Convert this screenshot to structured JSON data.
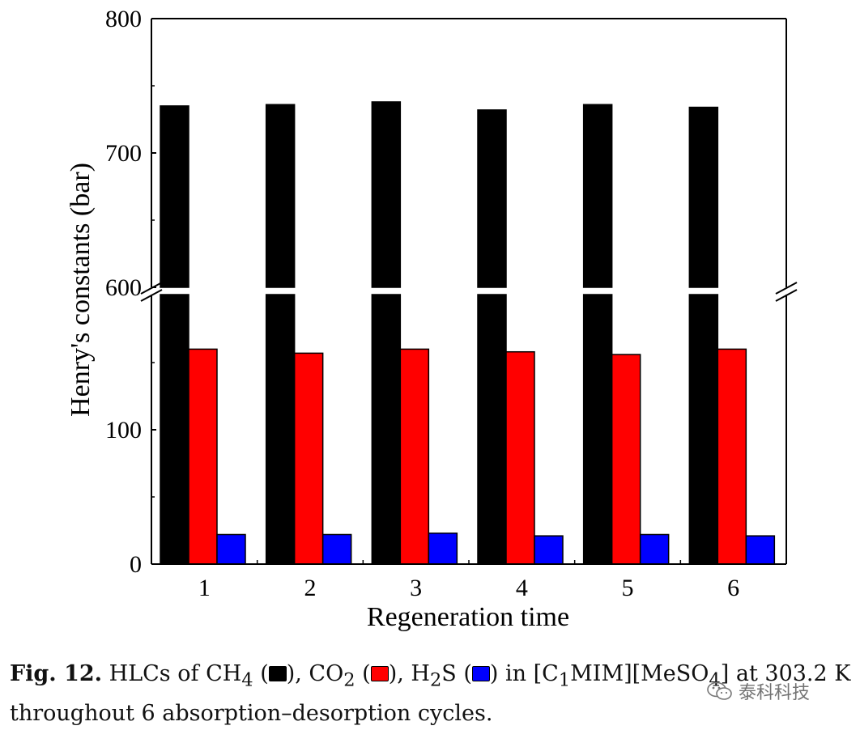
{
  "chart_data": {
    "type": "bar",
    "title": "",
    "xlabel": "Regeneration time",
    "ylabel": "Henry's constants (bar)",
    "categories": [
      "1",
      "2",
      "3",
      "4",
      "5",
      "6"
    ],
    "series": [
      {
        "name": "CH4",
        "color": "#000000",
        "values": [
          735,
          736,
          738,
          732,
          736,
          734
        ]
      },
      {
        "name": "CO2",
        "color": "#ff0000",
        "values": [
          160,
          157,
          160,
          158,
          156,
          160
        ]
      },
      {
        "name": "H2S",
        "color": "#0000ff",
        "values": [
          22,
          22,
          23,
          21,
          22,
          21
        ]
      }
    ],
    "axis_break": {
      "lower_ylim": [
        0,
        200
      ],
      "upper_ylim": [
        600,
        800
      ]
    },
    "y_ticks": [
      {
        "value": 0,
        "label": "0"
      },
      {
        "value": 100,
        "label": "100"
      },
      {
        "value": 600,
        "label": "600"
      },
      {
        "value": 700,
        "label": "700"
      },
      {
        "value": 800,
        "label": "800"
      }
    ],
    "grid": false,
    "legend": "none"
  },
  "caption": {
    "fig_label": "Fig. 12.",
    "t_hlcs": "HLCs of CH",
    "sub_4": "4",
    "t_ch4_open": " (",
    "t_ch4_close": "), CO",
    "sub_2a": "2",
    "t_co2_open": " (",
    "t_co2_close": "), H",
    "sub_2b": "2",
    "t_h2s_open": "S (",
    "t_h2s_close": ") in [C",
    "sub_1": "1",
    "t_tail": "MIM][MeSO",
    "sub_4b": "4",
    "t_end": "] at 303.2 K",
    "line2": "throughout 6 absorption–desorption cycles."
  },
  "watermark": {
    "text": "泰科科技",
    "icon": "wechat-icon"
  }
}
